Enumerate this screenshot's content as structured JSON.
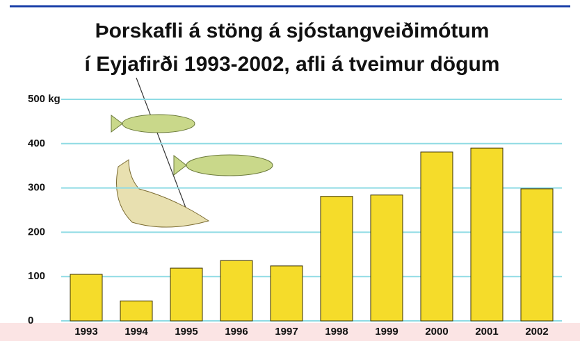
{
  "chart_data": {
    "type": "bar",
    "title": "Þorskafli á stöng á sjóstangveiðimótum",
    "subtitle": "í Eyjafirði 1993-2002, afli á tveimur dögum",
    "categories": [
      "1993",
      "1994",
      "1995",
      "1996",
      "1997",
      "1998",
      "1999",
      "2000",
      "2001",
      "2002"
    ],
    "values": [
      105,
      45,
      119,
      136,
      124,
      281,
      284,
      381,
      390,
      298
    ],
    "color": "#f5dc2a",
    "ylim": [
      0,
      500
    ],
    "yticks": [
      0,
      100,
      200,
      300,
      400,
      {
        "value": 500,
        "label": "500 kg"
      }
    ],
    "grid": true
  }
}
